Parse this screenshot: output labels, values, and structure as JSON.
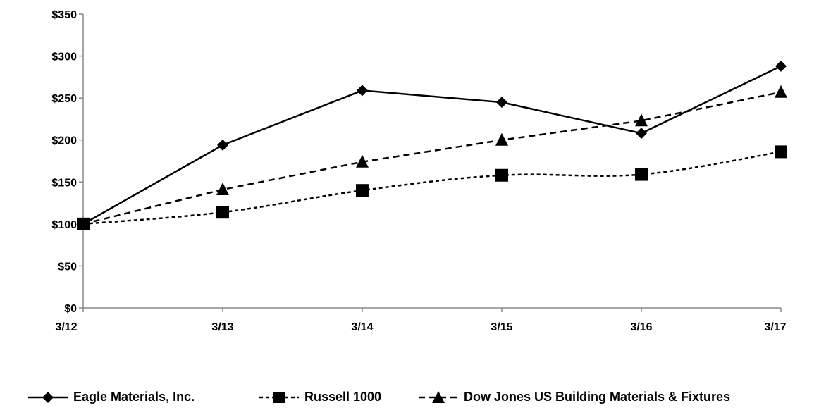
{
  "chart_data": {
    "type": "line",
    "title": "",
    "xlabel": "",
    "ylabel": "",
    "categories": [
      "3/12",
      "3/13",
      "3/14",
      "3/15",
      "3/16",
      "3/17"
    ],
    "ylim": [
      0,
      350
    ],
    "yticks": [
      0,
      50,
      100,
      150,
      200,
      250,
      300,
      350
    ],
    "ytick_labels": [
      "$0",
      "$50",
      "$100",
      "$150",
      "$200",
      "$250",
      "$300",
      "$350"
    ],
    "grid": false,
    "legend_position": "bottom",
    "series": [
      {
        "name": "Eagle Materials, Inc.",
        "values": [
          100,
          194,
          259,
          245,
          208,
          288
        ],
        "marker": "diamond",
        "line": "solid",
        "color": "#000000"
      },
      {
        "name": "Russell 1000",
        "values": [
          100,
          114,
          140,
          158,
          159,
          186
        ],
        "marker": "square",
        "line": "dotted",
        "color": "#000000"
      },
      {
        "name": "Dow Jones US Building Materials & Fixtures",
        "values": [
          100,
          141,
          174,
          200,
          223,
          257
        ],
        "marker": "triangle",
        "line": "dashed",
        "color": "#000000"
      }
    ]
  }
}
